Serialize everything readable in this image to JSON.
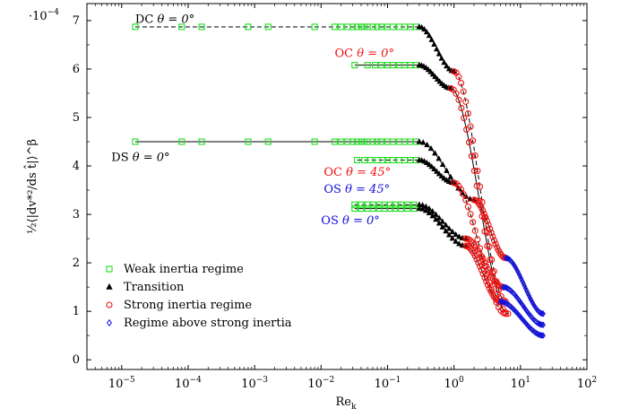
{
  "chart_data": {
    "type": "scatter",
    "title": "",
    "xlabel": "Re",
    "xlabel_sub": "k",
    "ylabel": "½⟨|dv*²/ds t̂|⟩^β",
    "x_scale": "log",
    "xlim": [
      3e-06,
      100
    ],
    "ylim": [
      -0.2,
      7.35
    ],
    "y_multiplier_label": "·10",
    "y_multiplier_exp": "−4",
    "x_ticks": [
      {
        "value": 1e-05,
        "mantissa": "10",
        "exp": "−5"
      },
      {
        "value": 0.0001,
        "mantissa": "10",
        "exp": "−4"
      },
      {
        "value": 0.001,
        "mantissa": "10",
        "exp": "−3"
      },
      {
        "value": 0.01,
        "mantissa": "10",
        "exp": "−2"
      },
      {
        "value": 0.1,
        "mantissa": "10",
        "exp": "−1"
      },
      {
        "value": 1,
        "mantissa": "10",
        "exp": "0"
      },
      {
        "value": 10,
        "mantissa": "10",
        "exp": "1"
      },
      {
        "value": 100,
        "mantissa": "10",
        "exp": "2"
      }
    ],
    "y_ticks": [
      {
        "value": 0,
        "label": "0"
      },
      {
        "value": 1,
        "label": "1"
      },
      {
        "value": 2,
        "label": "2"
      },
      {
        "value": 3,
        "label": "3"
      },
      {
        "value": 4,
        "label": "4"
      },
      {
        "value": 5,
        "label": "5"
      },
      {
        "value": 6,
        "label": "6"
      },
      {
        "value": 7,
        "label": "7"
      }
    ],
    "grid": false,
    "legend_position": "bottom-left",
    "colors": {
      "weak": "#22dd22",
      "transition": "#000000",
      "strong": "#ee1111",
      "above": "#1111dd"
    },
    "legend": [
      {
        "key": "weak",
        "label": "Weak inertia regime",
        "marker": "square"
      },
      {
        "key": "transition",
        "label": "Transition",
        "marker": "triangle"
      },
      {
        "key": "strong",
        "label": "Strong inertia regime",
        "marker": "circle"
      },
      {
        "key": "above",
        "label": "Regime above strong inertia",
        "marker": "diamond"
      }
    ],
    "annotations": [
      {
        "case": "DC",
        "label": "DC",
        "angle_text": "θ = 0°",
        "color": "#000000",
        "anchor": [
          1.6e-05,
          6.95
        ]
      },
      {
        "case": "OC0",
        "label": "OC",
        "angle_text": "θ = 0°",
        "color": "#ee1111",
        "anchor": [
          0.016,
          6.25
        ]
      },
      {
        "case": "DS",
        "label": "DS",
        "angle_text": "θ = 0°",
        "color": "#000000",
        "anchor": [
          7e-06,
          4.1
        ]
      },
      {
        "case": "OC45",
        "label": "OC",
        "angle_text": "θ = 45°",
        "color": "#ee1111",
        "anchor": [
          0.011,
          3.8
        ]
      },
      {
        "case": "OS45",
        "label": "OS",
        "angle_text": "θ = 45°",
        "color": "#1111dd",
        "anchor": [
          0.011,
          3.45
        ]
      },
      {
        "case": "OS0",
        "label": "OS",
        "angle_text": "θ = 0°",
        "color": "#1111dd",
        "anchor": [
          0.01,
          2.8
        ]
      }
    ],
    "cases": [
      {
        "name": "DC θ = 0°",
        "plateau": 6.87,
        "line": "dashed",
        "weak_x": [
          1.6e-05,
          8e-05,
          0.00016,
          0.0008,
          0.0016,
          0.008,
          0.016,
          0.02,
          0.025,
          0.03,
          0.035,
          0.04,
          0.045,
          0.05,
          0.06,
          0.07,
          0.08,
          0.1,
          0.12,
          0.15,
          0.18,
          0.22,
          0.27
        ],
        "transition": {
          "x0": 0.3,
          "x1": 1.0,
          "y1": 5.95
        },
        "strong": {
          "x0": 1.0,
          "x1": 6.0,
          "y1": 1.2
        },
        "above": null
      },
      {
        "name": "OC θ = 0°",
        "plateau": 6.08,
        "line": "solid",
        "weak_x": [
          0.032,
          0.05,
          0.065,
          0.08,
          0.1,
          0.12,
          0.15,
          0.18,
          0.22,
          0.27
        ],
        "transition": {
          "x0": 0.3,
          "x1": 0.9,
          "y1": 5.6
        },
        "strong": {
          "x0": 0.9,
          "x1": 6.5,
          "y1": 0.95
        },
        "above": null
      },
      {
        "name": "DS θ = 0°",
        "plateau": 4.5,
        "line": "solid",
        "weak_x": [
          1.6e-05,
          8e-05,
          0.00016,
          0.0008,
          0.0016,
          0.008,
          0.016,
          0.02,
          0.025,
          0.03,
          0.035,
          0.04,
          0.045,
          0.05,
          0.06,
          0.07,
          0.08,
          0.1,
          0.12,
          0.15,
          0.18,
          0.22,
          0.27
        ],
        "transition": {
          "x0": 0.3,
          "x1": 2.0,
          "y1": 3.3
        },
        "strong": {
          "x0": 2.0,
          "x1": 6.0,
          "y1": 2.1
        },
        "above": {
          "x0": 6.0,
          "x1": 22.0,
          "y1": 0.95
        }
      },
      {
        "name": "OC θ = 45°",
        "plateau": 4.12,
        "line": "dashed",
        "weak_x": [
          0.035,
          0.045,
          0.055,
          0.07,
          0.085,
          0.1,
          0.12,
          0.15,
          0.18,
          0.22,
          0.27
        ],
        "transition": {
          "x0": 0.3,
          "x1": 1.0,
          "y1": 3.65
        },
        "strong": {
          "x0": 1.0,
          "x1": 6.0,
          "y1": 0.95
        },
        "above": null
      },
      {
        "name": "OS θ = 45°",
        "plateau": 3.2,
        "line": "dashed",
        "weak_x": [
          0.032,
          0.04,
          0.05,
          0.06,
          0.075,
          0.09,
          0.11,
          0.13,
          0.16,
          0.2,
          0.25
        ],
        "transition": {
          "x0": 0.3,
          "x1": 1.5,
          "y1": 2.5
        },
        "strong": {
          "x0": 1.5,
          "x1": 5.5,
          "y1": 1.5
        },
        "above": {
          "x0": 5.5,
          "x1": 22.0,
          "y1": 0.72
        }
      },
      {
        "name": "OS θ = 0°",
        "plateau": 3.12,
        "line": "solid",
        "weak_x": [
          0.032,
          0.04,
          0.05,
          0.06,
          0.075,
          0.09,
          0.11,
          0.13,
          0.16,
          0.2,
          0.25
        ],
        "transition": {
          "x0": 0.3,
          "x1": 1.5,
          "y1": 2.35
        },
        "strong": {
          "x0": 1.5,
          "x1": 5.0,
          "y1": 1.2
        },
        "above": {
          "x0": 5.0,
          "x1": 22.0,
          "y1": 0.5
        }
      }
    ]
  }
}
